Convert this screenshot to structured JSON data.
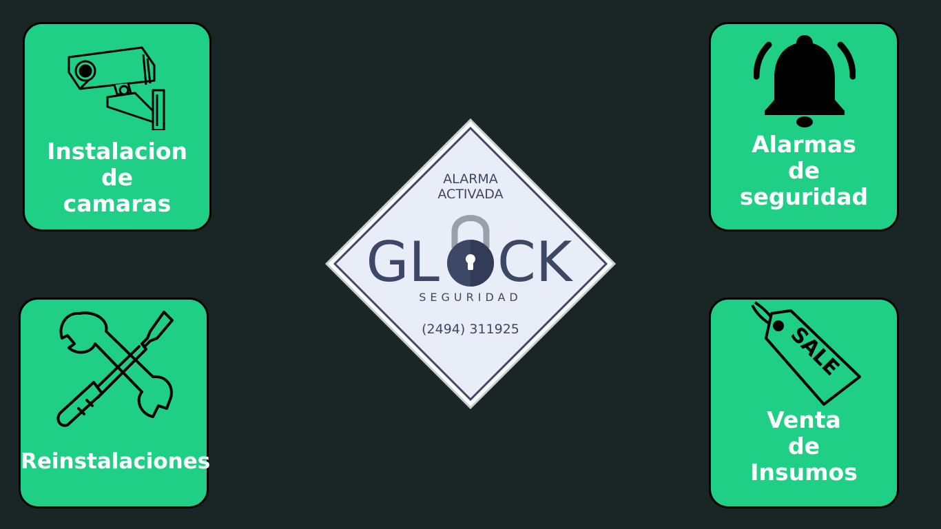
{
  "cards": {
    "cameras": {
      "label_lines": [
        "Instalacion",
        "de",
        "camaras"
      ],
      "icon": "security-camera-icon"
    },
    "alarms": {
      "label_lines": [
        "Alarmas",
        "de",
        "seguridad"
      ],
      "icon": "alarm-bell-icon"
    },
    "reinstallations": {
      "label_lines": [
        "Reinstalaciones"
      ],
      "icon": "wrench-screwdriver-icon"
    },
    "supplies": {
      "label_lines": [
        "Venta",
        "de",
        "Insumos"
      ],
      "icon": "sale-tag-icon",
      "tag_text": "SALE"
    }
  },
  "sign": {
    "top_line1": "ALARMA",
    "top_line2": "ACTIVADA",
    "brand_left": "GL",
    "brand_right": "CK",
    "subtitle": "SEGURIDAD",
    "phone": "(2494) 311925",
    "icon": "padlock-icon"
  },
  "colors": {
    "background": "#1a2626",
    "card": "#1fcf85",
    "sign_text": "#3d4766",
    "sign_bg": "#e9edf8"
  }
}
